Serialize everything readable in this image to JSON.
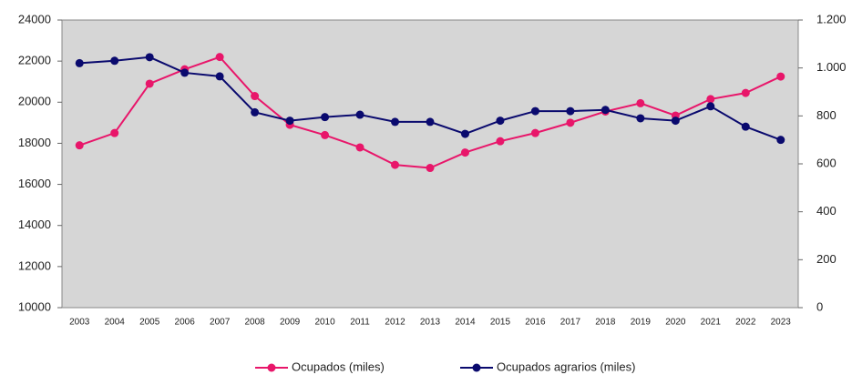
{
  "chart_data": {
    "type": "line",
    "categories": [
      "2003",
      "2004",
      "2005",
      "2006",
      "2007",
      "2008",
      "2009",
      "2010",
      "2011",
      "2012",
      "2013",
      "2014",
      "2015",
      "2016",
      "2017",
      "2018",
      "2019",
      "2020",
      "2021",
      "2022",
      "2023"
    ],
    "series": [
      {
        "name": "Ocupados (miles)",
        "color": "#e8166a",
        "values": [
          17900,
          18500,
          20900,
          21600,
          22200,
          20300,
          18900,
          18400,
          17800,
          16950,
          16800,
          17550,
          18100,
          18500,
          19000,
          19550,
          19950,
          19350,
          20150,
          20450,
          21250
        ]
      },
      {
        "name": "Ocupados agrarios (miles)",
        "color": "#0a0a6e",
        "axis": "y2",
        "values": [
          1020,
          1030,
          1045,
          980,
          965,
          815,
          780,
          795,
          805,
          775,
          775,
          725,
          780,
          820,
          820,
          825,
          790,
          780,
          840,
          755,
          700
        ]
      }
    ],
    "ylim": [
      10000,
      24000
    ],
    "yticks": [
      10000,
      12000,
      14000,
      16000,
      18000,
      20000,
      22000,
      24000
    ],
    "y2lim": [
      0,
      1200
    ],
    "y2ticks": [
      0,
      200,
      400,
      600,
      800,
      {
        "value": 1000,
        "label": "1.000"
      },
      {
        "value": 1200,
        "label": "1.200"
      }
    ],
    "legend": "bottom"
  }
}
